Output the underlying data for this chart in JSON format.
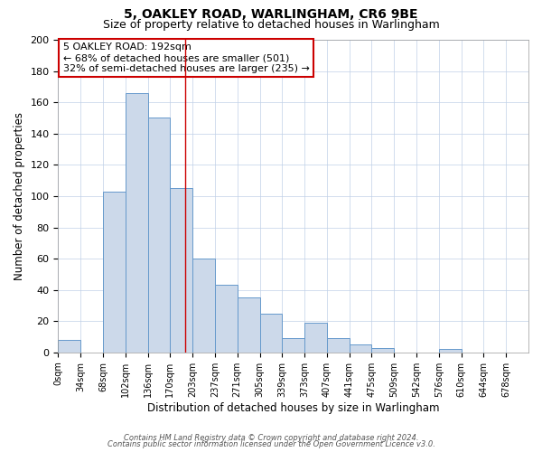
{
  "title": "5, OAKLEY ROAD, WARLINGHAM, CR6 9BE",
  "subtitle": "Size of property relative to detached houses in Warlingham",
  "xlabel": "Distribution of detached houses by size in Warlingham",
  "ylabel": "Number of detached properties",
  "footer_lines": [
    "Contains HM Land Registry data © Crown copyright and database right 2024.",
    "Contains public sector information licensed under the Open Government Licence v3.0."
  ],
  "bin_labels": [
    "0sqm",
    "34sqm",
    "68sqm",
    "102sqm",
    "136sqm",
    "170sqm",
    "203sqm",
    "237sqm",
    "271sqm",
    "305sqm",
    "339sqm",
    "373sqm",
    "407sqm",
    "441sqm",
    "475sqm",
    "509sqm",
    "542sqm",
    "576sqm",
    "610sqm",
    "644sqm",
    "678sqm"
  ],
  "bar_heights": [
    8,
    0,
    103,
    166,
    150,
    105,
    60,
    43,
    35,
    25,
    9,
    19,
    9,
    5,
    3,
    0,
    0,
    2,
    0,
    0,
    0
  ],
  "bar_color": "#ccd9ea",
  "bar_edgecolor": "#6699cc",
  "grid_color": "#c0d0e8",
  "background_color": "#ffffff",
  "annotation_line1": "5 OAKLEY ROAD: 192sqm",
  "annotation_line2": "← 68% of detached houses are smaller (501)",
  "annotation_line3": "32% of semi-detached houses are larger (235) →",
  "annotation_box_edgecolor": "#cc0000",
  "vline_color": "#cc0000",
  "vline_pos": 5.5,
  "ylim": [
    0,
    200
  ],
  "yticks": [
    0,
    20,
    40,
    60,
    80,
    100,
    120,
    140,
    160,
    180,
    200
  ],
  "num_bins": 21,
  "title_fontsize": 10,
  "subtitle_fontsize": 9
}
